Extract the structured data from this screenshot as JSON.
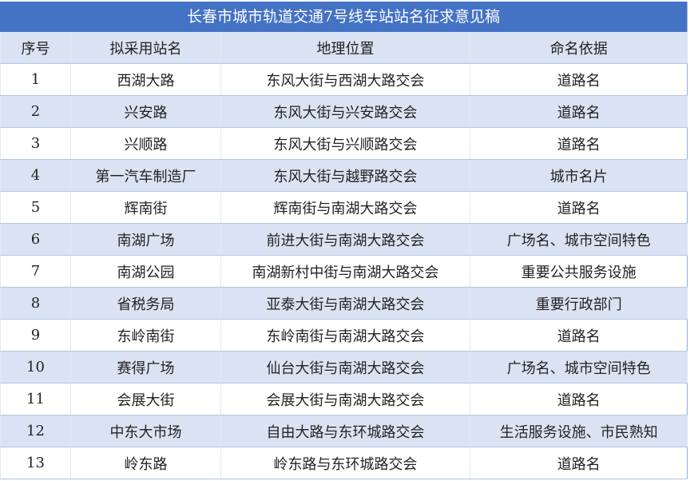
{
  "title": "长春市城市轨道交通7号线车站站名征求意见稿",
  "headers": [
    "序号",
    "拟采用站名",
    "地理位置",
    "命名依据"
  ],
  "rows": [
    [
      "1",
      "西湖大路",
      "东风大街与西湖大路交会",
      "道路名"
    ],
    [
      "2",
      "兴安路",
      "东风大街与兴安路交会",
      "道路名"
    ],
    [
      "3",
      "兴顺路",
      "东风大街与兴顺路交会",
      "道路名"
    ],
    [
      "4",
      "第一汽车制造厂",
      "东风大街与越野路交会",
      "城市名片"
    ],
    [
      "5",
      "辉南街",
      "辉南街与南湖大路交会",
      "道路名"
    ],
    [
      "6",
      "南湖广场",
      "前进大街与南湖大路交会",
      "广场名、城市空间特色"
    ],
    [
      "7",
      "南湖公园",
      "南湖新村中街与南湖大路交会",
      "重要公共服务设施"
    ],
    [
      "8",
      "省税务局",
      "亚泰大街与南湖大路交会",
      "重要行政部门"
    ],
    [
      "9",
      "东岭南街",
      "东岭南街与南湖大路交会",
      "道路名"
    ],
    [
      "10",
      "赛得广场",
      "仙台大街与南湖大路交会",
      "广场名、城市空间特色"
    ],
    [
      "11",
      "会展大街",
      "会展大街与南湖大路交会",
      "道路名"
    ],
    [
      "12",
      "中东大市场",
      "自由大路与东环城路交会",
      "生活服务设施、市民熟知"
    ],
    [
      "13",
      "岭东路",
      "岭东路与东环城路交会",
      "道路名"
    ]
  ],
  "colors": {
    "title_bg": "#4472c4",
    "alt_row": "#dae3f3"
  }
}
